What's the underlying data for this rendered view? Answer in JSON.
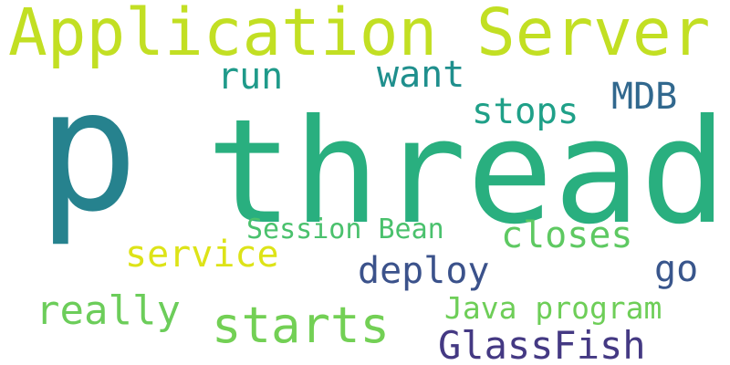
{
  "word_cloud": {
    "words": [
      {
        "key": "application_server",
        "text": "Application Server",
        "color": "#c2df23"
      },
      {
        "key": "p",
        "text": "p",
        "color": "#26828e"
      },
      {
        "key": "thread",
        "text": "thread",
        "color": "#29af7f"
      },
      {
        "key": "run",
        "text": "run",
        "color": "#1f9a8a"
      },
      {
        "key": "want",
        "text": "want",
        "color": "#1f8f8d"
      },
      {
        "key": "mdb",
        "text": "MDB",
        "color": "#31688e"
      },
      {
        "key": "stops",
        "text": "stops",
        "color": "#1fa088"
      },
      {
        "key": "session_bean",
        "text": "Session Bean",
        "color": "#4ac16d"
      },
      {
        "key": "closes",
        "text": "closes",
        "color": "#5ec962"
      },
      {
        "key": "service",
        "text": "service",
        "color": "#dde318"
      },
      {
        "key": "deploy",
        "text": "deploy",
        "color": "#3b528b"
      },
      {
        "key": "go",
        "text": "go",
        "color": "#39568c"
      },
      {
        "key": "really",
        "text": "really",
        "color": "#6ccd5a"
      },
      {
        "key": "starts",
        "text": "starts",
        "color": "#73d055"
      },
      {
        "key": "java_program",
        "text": "Java program",
        "color": "#6ece58"
      },
      {
        "key": "glassfish",
        "text": "GlassFish",
        "color": "#443983"
      }
    ]
  }
}
